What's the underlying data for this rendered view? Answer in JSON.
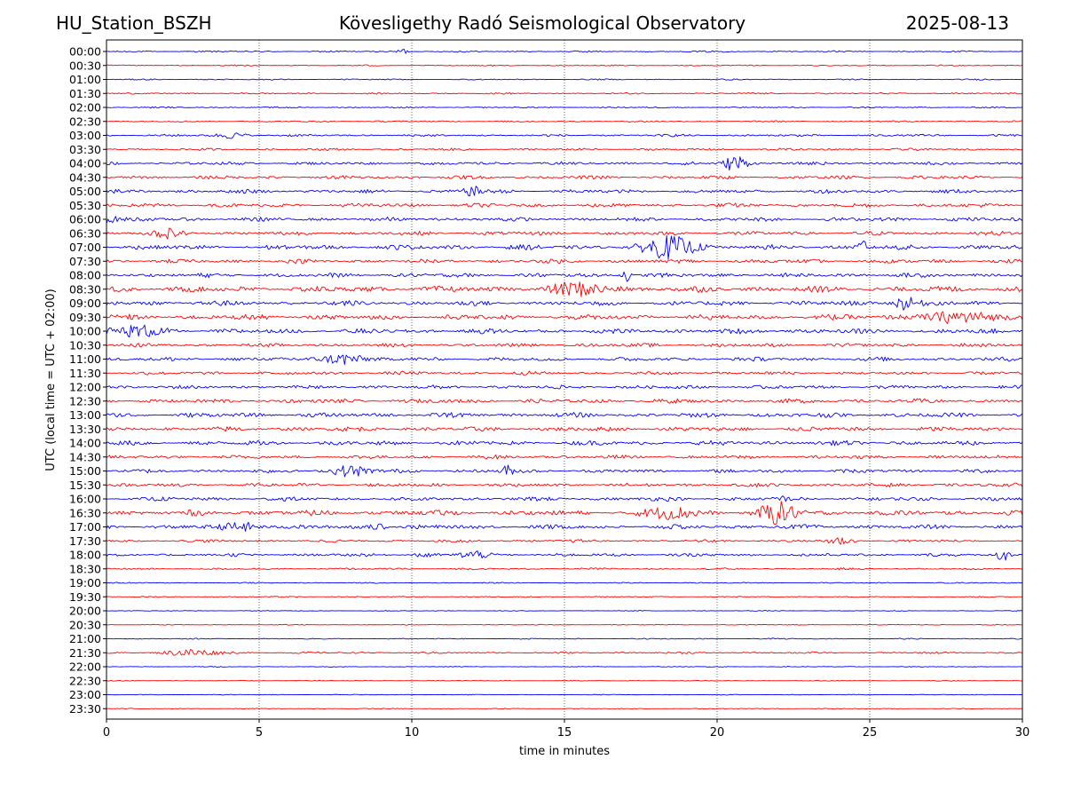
{
  "header": {
    "station": "HU_Station_BSZH",
    "title": "Kövesligethy Radó Seismological Observatory",
    "date": "2025-08-13"
  },
  "chart_data": {
    "type": "line",
    "xlabel": "time in minutes",
    "ylabel": "UTC (local time = UTC + 02:00)",
    "xlim": [
      0,
      30
    ],
    "xticks": [
      0,
      5,
      10,
      15,
      20,
      25,
      30
    ],
    "grid": "vertical dotted lines at 5-minute intervals",
    "series_colors": [
      "#0000ff",
      "#ff0000"
    ],
    "row_labels": [
      "00:00",
      "00:30",
      "01:00",
      "01:30",
      "02:00",
      "02:30",
      "03:00",
      "03:30",
      "04:00",
      "04:30",
      "05:00",
      "05:30",
      "06:00",
      "06:30",
      "07:00",
      "07:30",
      "08:00",
      "08:30",
      "09:00",
      "09:30",
      "10:00",
      "10:30",
      "11:00",
      "11:30",
      "12:00",
      "12:30",
      "13:00",
      "13:30",
      "14:00",
      "14:30",
      "15:00",
      "15:30",
      "16:00",
      "16:30",
      "17:00",
      "17:30",
      "18:00",
      "18:30",
      "19:00",
      "19:30",
      "20:00",
      "20:30",
      "21:00",
      "21:30",
      "22:00",
      "22:30",
      "23:00",
      "23:30"
    ],
    "noise_level": [
      1,
      0.8,
      0.8,
      1,
      0.9,
      1,
      1.5,
      1.5,
      2,
      2.2,
      2.5,
      2.6,
      2.6,
      2.6,
      3.2,
      2.6,
      2.8,
      4,
      3.2,
      3.5,
      3.2,
      2.4,
      2.6,
      2.3,
      2.4,
      2.8,
      3,
      3,
      3,
      2.4,
      2.4,
      2.4,
      2.6,
      3.5,
      2.8,
      1.8,
      2,
      1.2,
      0.7,
      0.7,
      0.5,
      0.6,
      0.7,
      1.2,
      0.5,
      0.5,
      0.5,
      0.5
    ],
    "events": [
      {
        "row": 0,
        "minute": 9.7,
        "amp": 4,
        "width": 0.15
      },
      {
        "row": 6,
        "minute": 4.1,
        "amp": 3,
        "width": 0.5
      },
      {
        "row": 8,
        "minute": 20.6,
        "amp": 10,
        "width": 0.35
      },
      {
        "row": 10,
        "minute": 12,
        "amp": 5,
        "width": 0.3
      },
      {
        "row": 12,
        "minute": 0.1,
        "amp": 5,
        "width": 0.2
      },
      {
        "row": 13,
        "minute": 2,
        "amp": 4,
        "width": 0.5
      },
      {
        "row": 14,
        "minute": 18.5,
        "amp": 12,
        "width": 0.8
      },
      {
        "row": 14,
        "minute": 24.8,
        "amp": 10,
        "width": 0.15
      },
      {
        "row": 16,
        "minute": 17,
        "amp": 8,
        "width": 0.15
      },
      {
        "row": 17,
        "minute": 15.5,
        "amp": 6,
        "width": 1
      },
      {
        "row": 18,
        "minute": 26.1,
        "amp": 7,
        "width": 0.4
      },
      {
        "row": 19,
        "minute": 28,
        "amp": 5,
        "width": 1.5
      },
      {
        "row": 20,
        "minute": 1,
        "amp": 6,
        "width": 0.8
      },
      {
        "row": 22,
        "minute": 7.7,
        "amp": 7,
        "width": 0.6
      },
      {
        "row": 30,
        "minute": 8,
        "amp": 6,
        "width": 0.6
      },
      {
        "row": 30,
        "minute": 13.1,
        "amp": 6,
        "width": 0.2
      },
      {
        "row": 32,
        "minute": 22.1,
        "amp": 8,
        "width": 0.1
      },
      {
        "row": 33,
        "minute": 18.5,
        "amp": 6,
        "width": 0.8
      },
      {
        "row": 33,
        "minute": 22,
        "amp": 11,
        "width": 0.6
      },
      {
        "row": 34,
        "minute": 4.5,
        "amp": 5,
        "width": 0.6
      },
      {
        "row": 34,
        "minute": 8.9,
        "amp": 7,
        "width": 0.2
      },
      {
        "row": 35,
        "minute": 24,
        "amp": 4,
        "width": 0.4
      },
      {
        "row": 36,
        "minute": 29.4,
        "amp": 9,
        "width": 0.2
      },
      {
        "row": 36,
        "minute": 10.4,
        "amp": 5,
        "width": 0.2
      },
      {
        "row": 36,
        "minute": 12,
        "amp": 5,
        "width": 0.4
      },
      {
        "row": 43,
        "minute": 2.8,
        "amp": 4,
        "width": 0.8
      }
    ]
  }
}
